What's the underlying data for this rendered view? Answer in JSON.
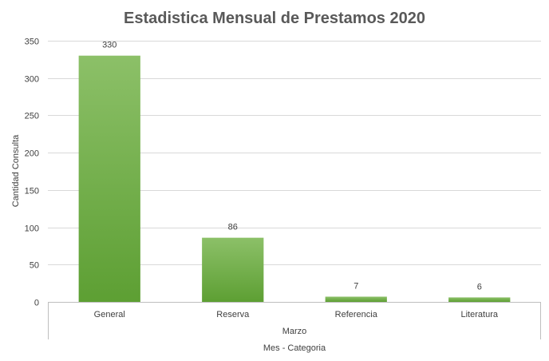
{
  "chart_data": {
    "type": "bar",
    "title": "Estadistica Mensual de Prestamos 2020",
    "ylabel": "Cantidad Consulta",
    "xlabel": "Mes - Categoria",
    "group_label": "Marzo",
    "categories": [
      "General",
      "Reserva",
      "Referencia",
      "Literatura"
    ],
    "values": [
      330,
      86,
      7,
      6
    ],
    "data_labels": [
      "330",
      "86",
      "7",
      "6"
    ],
    "ylim": [
      0,
      350
    ],
    "yticks": [
      0,
      50,
      100,
      150,
      200,
      250,
      300,
      350
    ],
    "grid": true,
    "legend": "none",
    "bar_color_top": "#8cc068",
    "bar_color_bottom": "#5d9f33"
  }
}
